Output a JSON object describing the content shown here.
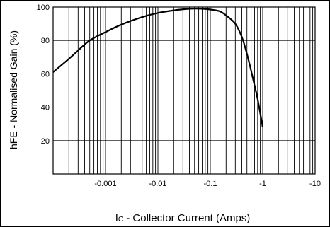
{
  "chart_data": {
    "type": "line",
    "title": "",
    "xlabel_main": "I",
    "xlabel_sub": "C",
    "xlabel_rest": " - Collector Current (Amps)",
    "ylabel": "hFE - Normalised Gain (%)",
    "x_scale": "log",
    "xlim": [
      0.0001,
      10
    ],
    "ylim": [
      0,
      100
    ],
    "x_ticks": [
      {
        "value": 0.001,
        "label": "-0.001"
      },
      {
        "value": 0.01,
        "label": "-0.01"
      },
      {
        "value": 0.1,
        "label": "-0.1"
      },
      {
        "value": 1,
        "label": "-1"
      },
      {
        "value": 10,
        "label": "-10"
      }
    ],
    "y_ticks": [
      {
        "value": 20,
        "label": "20"
      },
      {
        "value": 40,
        "label": "40"
      },
      {
        "value": 60,
        "label": "60"
      },
      {
        "value": 80,
        "label": "80"
      },
      {
        "value": 100,
        "label": "100"
      }
    ],
    "grid": true,
    "series": [
      {
        "name": "",
        "x": [
          0.0001,
          0.0002,
          0.0003,
          0.0005,
          0.001,
          0.002,
          0.005,
          0.01,
          0.02,
          0.04,
          0.07,
          0.1,
          0.15,
          0.2,
          0.3,
          0.4,
          0.5,
          0.6,
          0.7,
          0.8,
          1.0
        ],
        "y": [
          61,
          69,
          74,
          80,
          85,
          89.5,
          94,
          96.5,
          98,
          99,
          99,
          98.5,
          97.5,
          95,
          90,
          82,
          72,
          62,
          53,
          45,
          28
        ]
      }
    ]
  }
}
